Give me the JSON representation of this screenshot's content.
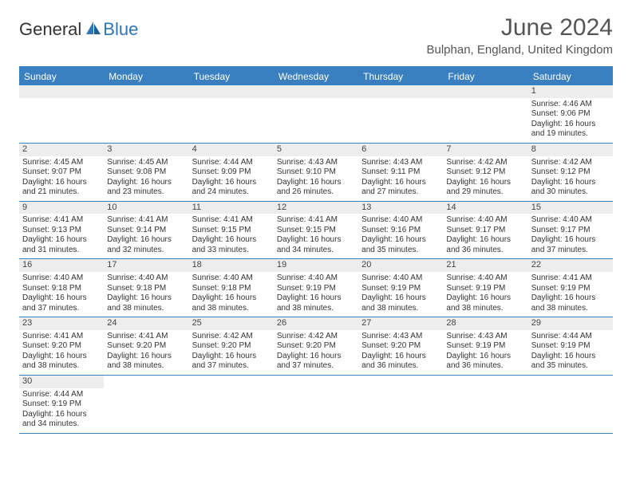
{
  "logo": {
    "general": "General",
    "blue": "Blue"
  },
  "title": "June 2024",
  "location": "Bulphan, England, United Kingdom",
  "colors": {
    "header_bg": "#3a7fbf",
    "grid_border": "#3a7fbf",
    "filler_bg": "#ededed",
    "text": "#333333",
    "title_text": "#555555",
    "logo_blue": "#2d77b8"
  },
  "days_of_week": [
    "Sunday",
    "Monday",
    "Tuesday",
    "Wednesday",
    "Thursday",
    "Friday",
    "Saturday"
  ],
  "weeks": [
    [
      null,
      null,
      null,
      null,
      null,
      null,
      {
        "num": "1",
        "sunrise": "4:46 AM",
        "sunset": "9:06 PM",
        "daylight": "16 hours and 19 minutes."
      }
    ],
    [
      {
        "num": "2",
        "sunrise": "4:45 AM",
        "sunset": "9:07 PM",
        "daylight": "16 hours and 21 minutes."
      },
      {
        "num": "3",
        "sunrise": "4:45 AM",
        "sunset": "9:08 PM",
        "daylight": "16 hours and 23 minutes."
      },
      {
        "num": "4",
        "sunrise": "4:44 AM",
        "sunset": "9:09 PM",
        "daylight": "16 hours and 24 minutes."
      },
      {
        "num": "5",
        "sunrise": "4:43 AM",
        "sunset": "9:10 PM",
        "daylight": "16 hours and 26 minutes."
      },
      {
        "num": "6",
        "sunrise": "4:43 AM",
        "sunset": "9:11 PM",
        "daylight": "16 hours and 27 minutes."
      },
      {
        "num": "7",
        "sunrise": "4:42 AM",
        "sunset": "9:12 PM",
        "daylight": "16 hours and 29 minutes."
      },
      {
        "num": "8",
        "sunrise": "4:42 AM",
        "sunset": "9:12 PM",
        "daylight": "16 hours and 30 minutes."
      }
    ],
    [
      {
        "num": "9",
        "sunrise": "4:41 AM",
        "sunset": "9:13 PM",
        "daylight": "16 hours and 31 minutes."
      },
      {
        "num": "10",
        "sunrise": "4:41 AM",
        "sunset": "9:14 PM",
        "daylight": "16 hours and 32 minutes."
      },
      {
        "num": "11",
        "sunrise": "4:41 AM",
        "sunset": "9:15 PM",
        "daylight": "16 hours and 33 minutes."
      },
      {
        "num": "12",
        "sunrise": "4:41 AM",
        "sunset": "9:15 PM",
        "daylight": "16 hours and 34 minutes."
      },
      {
        "num": "13",
        "sunrise": "4:40 AM",
        "sunset": "9:16 PM",
        "daylight": "16 hours and 35 minutes."
      },
      {
        "num": "14",
        "sunrise": "4:40 AM",
        "sunset": "9:17 PM",
        "daylight": "16 hours and 36 minutes."
      },
      {
        "num": "15",
        "sunrise": "4:40 AM",
        "sunset": "9:17 PM",
        "daylight": "16 hours and 37 minutes."
      }
    ],
    [
      {
        "num": "16",
        "sunrise": "4:40 AM",
        "sunset": "9:18 PM",
        "daylight": "16 hours and 37 minutes."
      },
      {
        "num": "17",
        "sunrise": "4:40 AM",
        "sunset": "9:18 PM",
        "daylight": "16 hours and 38 minutes."
      },
      {
        "num": "18",
        "sunrise": "4:40 AM",
        "sunset": "9:18 PM",
        "daylight": "16 hours and 38 minutes."
      },
      {
        "num": "19",
        "sunrise": "4:40 AM",
        "sunset": "9:19 PM",
        "daylight": "16 hours and 38 minutes."
      },
      {
        "num": "20",
        "sunrise": "4:40 AM",
        "sunset": "9:19 PM",
        "daylight": "16 hours and 38 minutes."
      },
      {
        "num": "21",
        "sunrise": "4:40 AM",
        "sunset": "9:19 PM",
        "daylight": "16 hours and 38 minutes."
      },
      {
        "num": "22",
        "sunrise": "4:41 AM",
        "sunset": "9:19 PM",
        "daylight": "16 hours and 38 minutes."
      }
    ],
    [
      {
        "num": "23",
        "sunrise": "4:41 AM",
        "sunset": "9:20 PM",
        "daylight": "16 hours and 38 minutes."
      },
      {
        "num": "24",
        "sunrise": "4:41 AM",
        "sunset": "9:20 PM",
        "daylight": "16 hours and 38 minutes."
      },
      {
        "num": "25",
        "sunrise": "4:42 AM",
        "sunset": "9:20 PM",
        "daylight": "16 hours and 37 minutes."
      },
      {
        "num": "26",
        "sunrise": "4:42 AM",
        "sunset": "9:20 PM",
        "daylight": "16 hours and 37 minutes."
      },
      {
        "num": "27",
        "sunrise": "4:43 AM",
        "sunset": "9:20 PM",
        "daylight": "16 hours and 36 minutes."
      },
      {
        "num": "28",
        "sunrise": "4:43 AM",
        "sunset": "9:19 PM",
        "daylight": "16 hours and 36 minutes."
      },
      {
        "num": "29",
        "sunrise": "4:44 AM",
        "sunset": "9:19 PM",
        "daylight": "16 hours and 35 minutes."
      }
    ],
    [
      {
        "num": "30",
        "sunrise": "4:44 AM",
        "sunset": "9:19 PM",
        "daylight": "16 hours and 34 minutes."
      },
      null,
      null,
      null,
      null,
      null,
      null
    ]
  ],
  "labels": {
    "sunrise": "Sunrise: ",
    "sunset": "Sunset: ",
    "daylight": "Daylight: "
  }
}
